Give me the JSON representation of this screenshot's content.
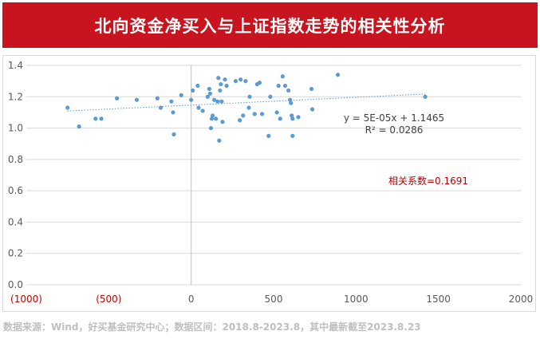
{
  "banner": {
    "title": "北向资金净买入与上证指数走势的相关性分析",
    "background": "#c8141e"
  },
  "chart_data": {
    "type": "scatter",
    "title": "",
    "xlabel": "",
    "ylabel": "",
    "xlim": [
      -1000,
      2000
    ],
    "ylim": [
      0.0,
      1.4
    ],
    "x_ticks": [
      -1000,
      -500,
      0,
      500,
      1000,
      1500,
      2000
    ],
    "x_tick_labels": [
      "(1000)",
      "(500)",
      "0",
      "500",
      "1000",
      "1500",
      "2000"
    ],
    "x_negative_label_color": "#c00000",
    "y_ticks": [
      0.0,
      0.2,
      0.4,
      0.6,
      0.8,
      1.0,
      1.2,
      1.4
    ],
    "y_tick_labels": [
      "0.0",
      "0.2",
      "0.4",
      "0.6",
      "0.8",
      "1.0",
      "1.2",
      "1.4"
    ],
    "grid": "horizontal",
    "point_color": "#5b9bd5",
    "trendline": {
      "style": "dotted linear",
      "equation": "y = 5E-05x + 1.1465",
      "r_squared": "R² = 0.0286",
      "x_range": [
        -750,
        1420
      ]
    },
    "annotation": {
      "text": "相关系数=0.1691",
      "color": "#c00000"
    },
    "points": [
      [
        -750,
        1.13
      ],
      [
        -680,
        1.01
      ],
      [
        -580,
        1.06
      ],
      [
        -545,
        1.06
      ],
      [
        -450,
        1.19
      ],
      [
        -330,
        1.18
      ],
      [
        -205,
        1.19
      ],
      [
        -185,
        1.13
      ],
      [
        -120,
        1.17
      ],
      [
        -110,
        1.1
      ],
      [
        -105,
        0.96
      ],
      [
        -60,
        1.21
      ],
      [
        10,
        1.24
      ],
      [
        0,
        1.18
      ],
      [
        40,
        1.27
      ],
      [
        45,
        1.13
      ],
      [
        70,
        1.11
      ],
      [
        100,
        1.2
      ],
      [
        110,
        1.25
      ],
      [
        115,
        1.22
      ],
      [
        120,
        1.0
      ],
      [
        125,
        1.06
      ],
      [
        130,
        1.08
      ],
      [
        140,
        1.18
      ],
      [
        150,
        1.06
      ],
      [
        160,
        1.17
      ],
      [
        165,
        1.32
      ],
      [
        170,
        0.92
      ],
      [
        175,
        1.24
      ],
      [
        180,
        1.28
      ],
      [
        185,
        1.17
      ],
      [
        190,
        1.04
      ],
      [
        205,
        1.31
      ],
      [
        215,
        1.27
      ],
      [
        270,
        1.3
      ],
      [
        295,
        1.05
      ],
      [
        300,
        1.31
      ],
      [
        315,
        1.08
      ],
      [
        330,
        1.3
      ],
      [
        350,
        1.13
      ],
      [
        355,
        1.2
      ],
      [
        385,
        1.09
      ],
      [
        400,
        1.28
      ],
      [
        415,
        1.29
      ],
      [
        430,
        1.09
      ],
      [
        470,
        0.95
      ],
      [
        480,
        1.2
      ],
      [
        520,
        1.1
      ],
      [
        530,
        1.27
      ],
      [
        540,
        1.06
      ],
      [
        555,
        1.33
      ],
      [
        570,
        1.27
      ],
      [
        590,
        1.24
      ],
      [
        600,
        1.18
      ],
      [
        605,
        1.16
      ],
      [
        610,
        1.08
      ],
      [
        615,
        1.06
      ],
      [
        615,
        0.95
      ],
      [
        650,
        1.07
      ],
      [
        730,
        1.25
      ],
      [
        735,
        1.12
      ],
      [
        890,
        1.34
      ],
      [
        1420,
        1.2
      ]
    ]
  },
  "footer": {
    "source": "数据来源：Wind，好买基金研究中心；数据区间：2018.8-2023.8，其中最新截至2023.8.23"
  }
}
